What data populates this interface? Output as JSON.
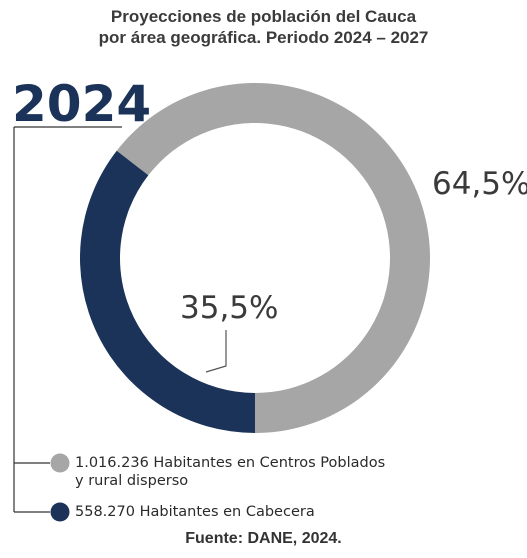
{
  "chart_data": {
    "type": "pie",
    "title": "Proyecciones de población del Cauca\npor área geográfica. Periodo 2024 – 2027",
    "title_lines": [
      "Proyecciones de población del Cauca",
      "por área geográfica. Periodo 2024 – 2027"
    ],
    "year_label": "2024",
    "slices": [
      {
        "label": "1.016.236 Habitantes en Centros Poblados y rural disperso",
        "value": 64.5,
        "value_label": "64,5%",
        "color": "#a6a6a6"
      },
      {
        "label": "558.270 Habitantes en Cabecera",
        "value": 35.5,
        "value_label": "35,5%",
        "color": "#1b3358"
      }
    ],
    "legend": [
      {
        "lines": [
          "1.016.236 Habitantes en Centros Poblados",
          "y rural disperso"
        ],
        "color": "#a6a6a6"
      },
      {
        "lines": [
          "558.270 Habitantes en Cabecera"
        ],
        "color": "#1b3358"
      }
    ],
    "legend_placement": "bottom-left",
    "source": "Fuente: DANE, 2024."
  }
}
